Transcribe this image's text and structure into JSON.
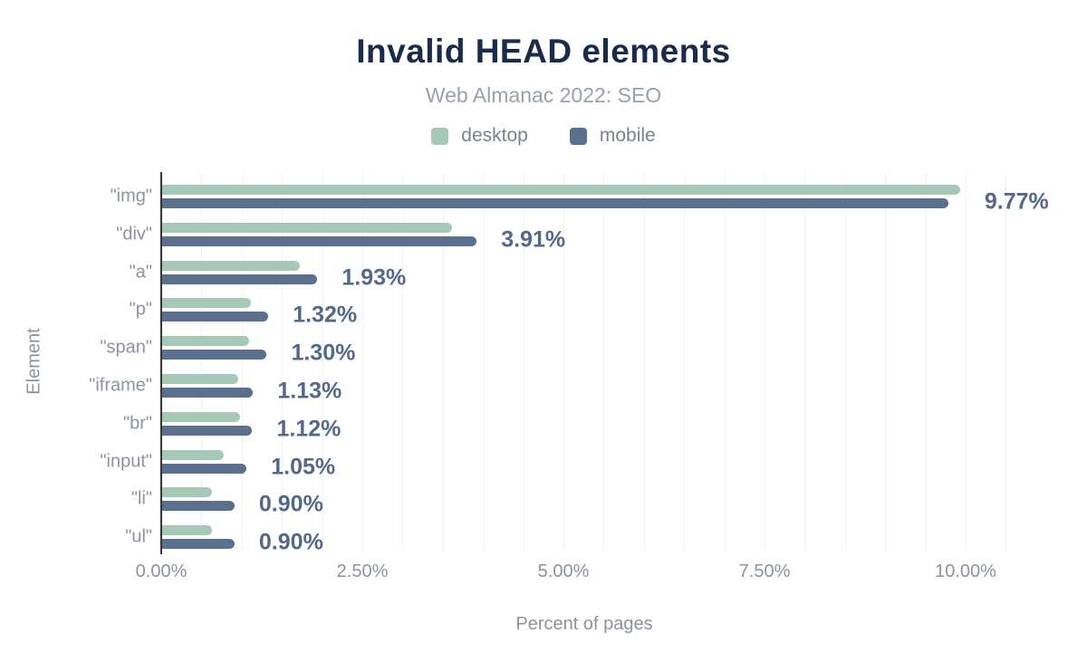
{
  "header": {
    "title": "Invalid HEAD elements",
    "subtitle": "Web Almanac 2022: SEO"
  },
  "chart_data": {
    "type": "bar",
    "orientation": "horizontal",
    "title": "Invalid HEAD elements",
    "subtitle": "Web Almanac 2022: SEO",
    "categories": [
      "\"img\"",
      "\"div\"",
      "\"a\"",
      "\"p\"",
      "\"span\"",
      "\"iframe\"",
      "\"br\"",
      "\"input\"",
      "\"li\"",
      "\"ul\""
    ],
    "series": [
      {
        "name": "desktop",
        "color": "#a5c8b7",
        "values": [
          9.92,
          3.6,
          1.71,
          1.1,
          1.08,
          0.95,
          0.97,
          0.77,
          0.62,
          0.62
        ]
      },
      {
        "name": "mobile",
        "color": "#5b6f8e",
        "values": [
          9.77,
          3.91,
          1.93,
          1.32,
          1.3,
          1.13,
          1.12,
          1.05,
          0.9,
          0.9
        ]
      }
    ],
    "data_labels": [
      "9.77%",
      "3.91%",
      "1.93%",
      "1.32%",
      "1.30%",
      "1.13%",
      "1.12%",
      "1.05%",
      "0.90%",
      "0.90%"
    ],
    "data_label_series": "mobile",
    "xlabel": "Percent of pages",
    "ylabel": "Element",
    "x_ticks": [
      "0.00%",
      "2.50%",
      "5.00%",
      "7.50%",
      "10.00%"
    ],
    "x_tick_values": [
      0,
      2.5,
      5,
      7.5,
      10
    ],
    "xlim": [
      0,
      10.52
    ],
    "grid": {
      "on": true,
      "step_pct": 0.5,
      "color": "#f0f1f3"
    },
    "legend_position": "top"
  },
  "colors": {
    "title": "#1a2b4c",
    "subtitle": "#9aa0ab",
    "axis_text": "#8d939e",
    "value_label": "#54688c",
    "axis_line": "#35383b",
    "gridline": "#f0f1f3",
    "desktop": "#a5c8b7",
    "mobile": "#5b6f8e"
  }
}
